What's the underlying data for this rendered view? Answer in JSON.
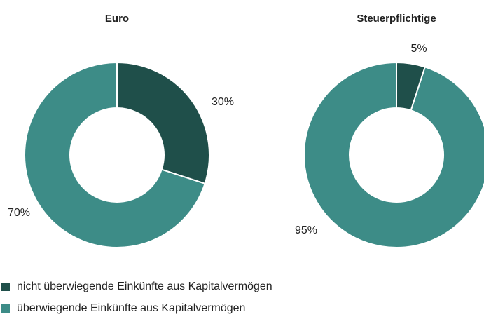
{
  "chart_data": [
    {
      "type": "pie",
      "title": "Euro",
      "values": [
        30,
        70
      ],
      "value_labels": [
        "30%",
        "70%"
      ]
    },
    {
      "type": "pie",
      "title": "Steuerpflichtige",
      "values": [
        5,
        95
      ],
      "value_labels": [
        "5%",
        "95%"
      ]
    }
  ],
  "legend": {
    "labels": [
      "nicht überwiegende Einkünfte aus Kapitalvermögen",
      "überwiegende Einkünfte aus Kapitalvermögen"
    ],
    "colors": [
      "#1f4f4a",
      "#3d8c87"
    ]
  }
}
